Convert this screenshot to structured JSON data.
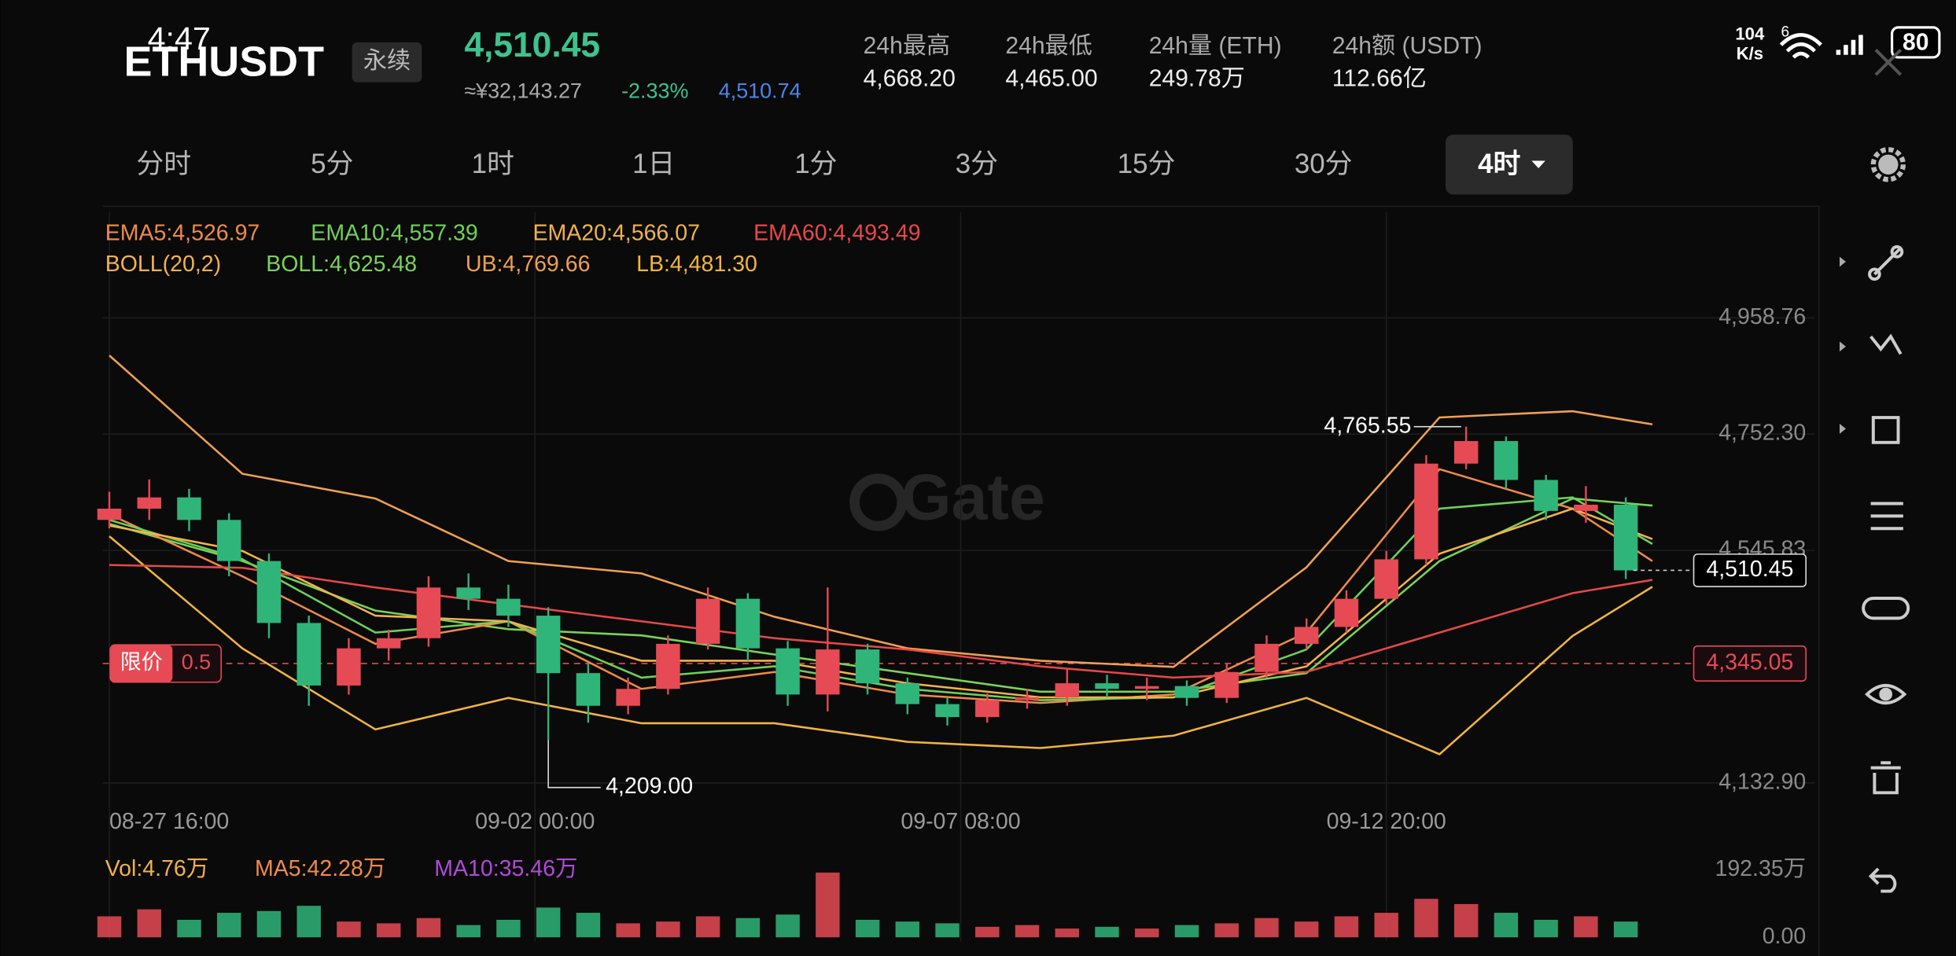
{
  "status_bar": {
    "time": "4:47",
    "net_speed": "104",
    "net_unit": "K/s",
    "signal": "6",
    "battery": "80"
  },
  "header": {
    "symbol": "ETHUSDT",
    "contract": "永续",
    "price": "4,510.45",
    "cny": "≈¥32,143.27",
    "change": "-2.33%",
    "mark_price": "4,510.74",
    "stats": [
      {
        "label": "24h最高",
        "value": "4,668.20"
      },
      {
        "label": "24h最低",
        "value": "4,465.00"
      },
      {
        "label": "24h量 (ETH)",
        "value": "249.78万"
      },
      {
        "label": "24h额 (USDT)",
        "value": "112.66亿"
      }
    ]
  },
  "tabs": [
    "分时",
    "5分",
    "1时",
    "1日",
    "1分",
    "3分",
    "15分",
    "30分",
    "4时"
  ],
  "selected_tab": 8,
  "chart_data": {
    "type": "candlestick",
    "watermark": "Gate",
    "up_color": "#e64a55",
    "down_color": "#2fb57a",
    "grid": true,
    "x": [
      0,
      3,
      6,
      9,
      12,
      15,
      18,
      21,
      24,
      27,
      30,
      33,
      36,
      39,
      42,
      45,
      48,
      51,
      54,
      57,
      60,
      63,
      66,
      69,
      72,
      75,
      78,
      81,
      84,
      87,
      90,
      93,
      96,
      99,
      102,
      105,
      108,
      111,
      114
    ],
    "open": [
      4600,
      4620,
      4640,
      4600,
      4527,
      4417,
      4306,
      4372,
      4390,
      4480,
      4460,
      4430,
      4328,
      4270,
      4300,
      4380,
      4460,
      4372,
      4290,
      4370,
      4310,
      4273,
      4250,
      4280,
      4285,
      4310,
      4300,
      4305,
      4284,
      4330,
      4380,
      4410,
      4460,
      4530,
      4700,
      4740,
      4671,
      4616,
      4627
    ],
    "high": [
      4650,
      4672,
      4655,
      4612,
      4540,
      4430,
      4390,
      4405,
      4500,
      4505,
      4485,
      4445,
      4345,
      4320,
      4395,
      4480,
      4470,
      4385,
      4480,
      4380,
      4320,
      4285,
      4292,
      4300,
      4335,
      4325,
      4320,
      4315,
      4345,
      4395,
      4425,
      4475,
      4545,
      4715,
      4765.55,
      4748,
      4680,
      4660,
      4640
    ],
    "low": [
      4585,
      4600,
      4580,
      4500,
      4390,
      4270,
      4290,
      4350,
      4375,
      4440,
      4410,
      4209,
      4240,
      4255,
      4290,
      4370,
      4350,
      4270,
      4260,
      4290,
      4255,
      4235,
      4240,
      4265,
      4270,
      4285,
      4280,
      4270,
      4275,
      4320,
      4370,
      4400,
      4450,
      4520,
      4690,
      4655,
      4600,
      4595,
      4495
    ],
    "close": [
      4620,
      4640,
      4600,
      4527,
      4417,
      4306,
      4372,
      4390,
      4480,
      4460,
      4430,
      4328,
      4270,
      4300,
      4380,
      4460,
      4372,
      4290,
      4370,
      4310,
      4273,
      4250,
      4280,
      4285,
      4310,
      4300,
      4305,
      4284,
      4330,
      4380,
      4410,
      4460,
      4530,
      4700,
      4740,
      4671,
      4616,
      4627,
      4510.45
    ],
    "xlim": [
      -0.5,
      128.2
    ],
    "ylim": [
      4106.8,
      5146.9
    ],
    "xticks": [
      {
        "value": 0,
        "label": "08-27 16:00"
      },
      {
        "value": 32,
        "label": "09-02 00:00"
      },
      {
        "value": 64,
        "label": "09-07 08:00"
      },
      {
        "value": 96,
        "label": "09-12 20:00"
      }
    ],
    "yticks": [
      {
        "value": 4958.76,
        "label": "4,958.76"
      },
      {
        "value": 4752.3,
        "label": "4,752.30"
      },
      {
        "value": 4545.83,
        "label": "4,545.83"
      },
      {
        "value": 4132.9,
        "label": "4,132.90"
      }
    ],
    "line_x": [
      0,
      10,
      20,
      30,
      40,
      50,
      60,
      70,
      80,
      90,
      100,
      110,
      116
    ],
    "lines": [
      {
        "name": "EMA5:4,526.97",
        "color": "#f08a4b",
        "values": [
          4610,
          4500,
          4380,
          4420,
          4300,
          4330,
          4290,
          4275,
          4290,
          4400,
          4690,
          4620,
          4526.97
        ]
      },
      {
        "name": "EMA10:4,557.39",
        "color": "#6fd15a",
        "values": [
          4600,
          4530,
          4400,
          4420,
          4320,
          4340,
          4300,
          4280,
          4285,
          4370,
          4620,
          4640,
          4557.39
        ]
      },
      {
        "name": "EMA20:4,566.07",
        "color": "#f2b24e",
        "values": [
          4590,
          4545,
          4430,
          4420,
          4350,
          4350,
          4310,
          4285,
          4285,
          4340,
          4540,
          4620,
          4566.07
        ]
      },
      {
        "name": "EMA60:4,493.49",
        "color": "#e84848",
        "values": [
          4520,
          4515,
          4480,
          4450,
          4420,
          4390,
          4370,
          4340,
          4320,
          4330,
          4400,
          4470,
          4493.49
        ]
      }
    ],
    "boll_label": "BOLL(20,2)",
    "boll_label_color": "#f2b24e",
    "boll": [
      {
        "name": "BOLL:4,625.48",
        "color": "#7ad35a",
        "values": [
          4593,
          4527,
          4439,
          4406,
          4395,
          4361,
          4328,
          4295,
          4295,
          4328,
          4527,
          4638,
          4625.48
        ]
      },
      {
        "name": "UB:4,769.66",
        "color": "#f0a050",
        "values": [
          4892,
          4682,
          4638,
          4527,
          4505,
          4428,
          4372,
          4350,
          4339,
          4516,
          4782,
          4793,
          4769.66
        ]
      },
      {
        "name": "LB:4,481.30",
        "color": "#f2b440",
        "values": [
          4571,
          4372,
          4228,
          4284,
          4239,
          4239,
          4206,
          4195,
          4217,
          4284,
          4184,
          4394,
          4481.3
        ]
      }
    ],
    "high_annotation": {
      "value": 4765.55,
      "label": "4,765.55"
    },
    "low_annotation": {
      "value": 4209,
      "label": "4,209.00"
    },
    "last_price": {
      "value": 4510.45,
      "label": "4,510.45"
    },
    "limit_order": {
      "label": "限价",
      "qty": "0.5",
      "price": {
        "value": 4345.05,
        "label": "4,345.05"
      }
    },
    "volume": {
      "values": [
        60,
        80,
        50,
        70,
        75,
        90,
        45,
        40,
        55,
        35,
        50,
        85,
        70,
        40,
        45,
        60,
        55,
        65,
        185,
        50,
        45,
        40,
        30,
        35,
        25,
        30,
        25,
        35,
        40,
        55,
        45,
        60,
        70,
        110,
        95,
        70,
        50,
        60,
        45
      ],
      "ylim": [
        0,
        192.35
      ],
      "yticks": [
        {
          "value": 192.35,
          "label": "192.35万"
        },
        {
          "value": 0,
          "label": "0.00"
        }
      ],
      "legend": [
        {
          "name": "Vol:4.76万",
          "color": "#f2b24e"
        },
        {
          "name": "MA5:42.28万",
          "color": "#f08a4b"
        },
        {
          "name": "MA10:35.46万",
          "color": "#b04ad8"
        }
      ]
    }
  }
}
